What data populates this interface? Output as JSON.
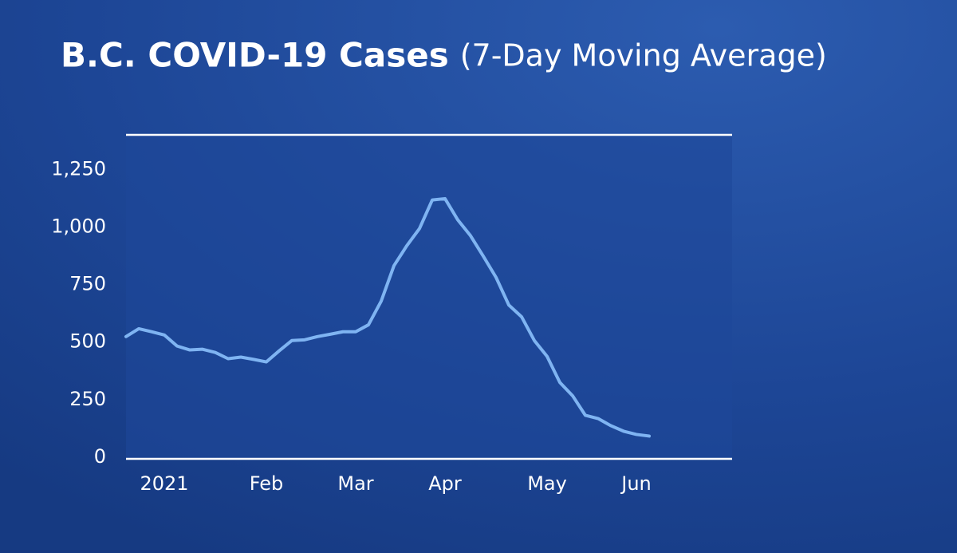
{
  "chart_data": {
    "type": "line",
    "title": "B.C. COVID-19 Cases",
    "subtitle": "(7-Day Moving Average)",
    "categories": [
      null,
      null,
      null,
      "2021",
      null,
      null,
      null,
      null,
      null,
      null,
      null,
      "Feb",
      null,
      null,
      null,
      null,
      null,
      null,
      "Mar",
      null,
      null,
      null,
      null,
      null,
      null,
      "Apr",
      null,
      null,
      null,
      null,
      null,
      null,
      null,
      "May",
      null,
      null,
      null,
      null,
      null,
      null,
      "Jun",
      null,
      null,
      null,
      null,
      null,
      null,
      null
    ],
    "series": [
      {
        "color": "#7fb4f2",
        "values": [
          524,
          558,
          545,
          531,
          483,
          466,
          469,
          455,
          428,
          435,
          425,
          414,
          462,
          507,
          510,
          524,
          534,
          545,
          545,
          575,
          678,
          832,
          918,
          993,
          1117,
          1123,
          1031,
          962,
          873,
          781,
          661,
          610,
          507,
          438,
          325,
          267,
          182,
          168,
          137,
          113,
          99,
          92,
          null,
          null,
          null,
          null,
          null,
          null
        ]
      }
    ],
    "ylim": [
      0,
      1400
    ],
    "yticks": [
      0,
      250,
      500,
      750,
      {
        "value": 1000,
        "label": "1,000"
      },
      {
        "value": 1250,
        "label": "1,250"
      }
    ],
    "grid": false
  }
}
